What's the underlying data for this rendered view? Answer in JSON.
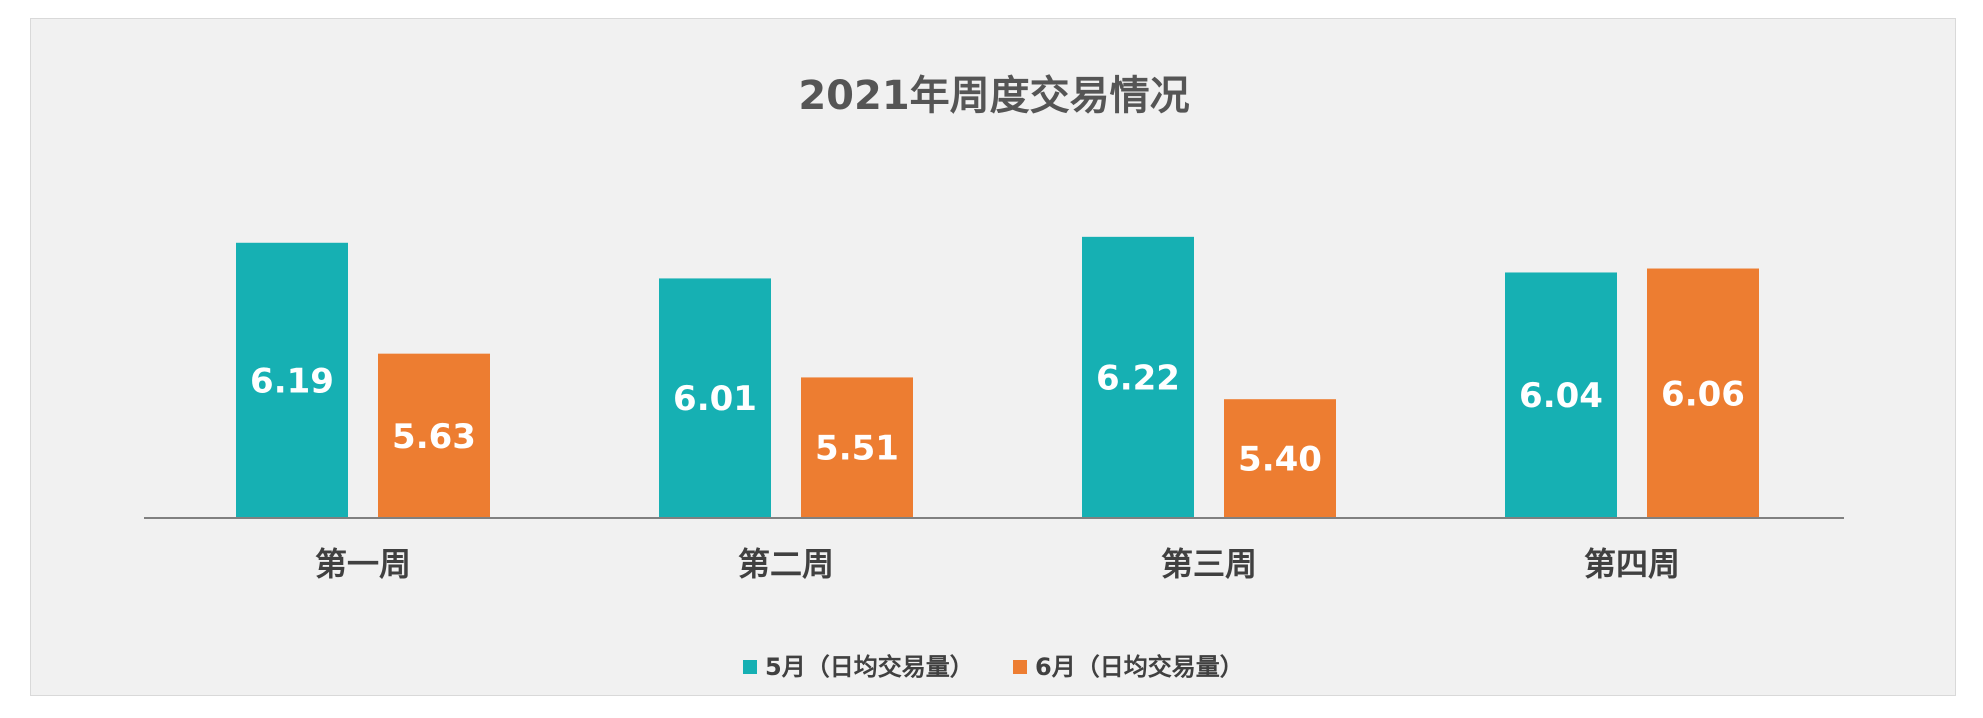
{
  "colors": {
    "may": "#16b0b3",
    "june": "#ed7d31",
    "axis": "#808080",
    "background": "#f1f1f1"
  },
  "chart_data": {
    "type": "bar",
    "title": "2021年周度交易情况",
    "xlabel": "",
    "ylabel": "",
    "categories": [
      "第一周",
      "第二周",
      "第三周",
      "第四周"
    ],
    "series": [
      {
        "name": "5月（日均交易量）",
        "values": [
          6.19,
          6.01,
          6.22,
          6.04
        ]
      },
      {
        "name": "6月（日均交易量）",
        "values": [
          5.63,
          5.51,
          5.4,
          6.06
        ]
      }
    ],
    "value_labels": [
      [
        "6.19",
        "6.01",
        "6.22",
        "6.04"
      ],
      [
        "5.63",
        "5.51",
        "5.40",
        "6.06"
      ]
    ],
    "ylim": [
      4.8,
      6.3
    ],
    "grid": false,
    "legend_position": "bottom"
  }
}
